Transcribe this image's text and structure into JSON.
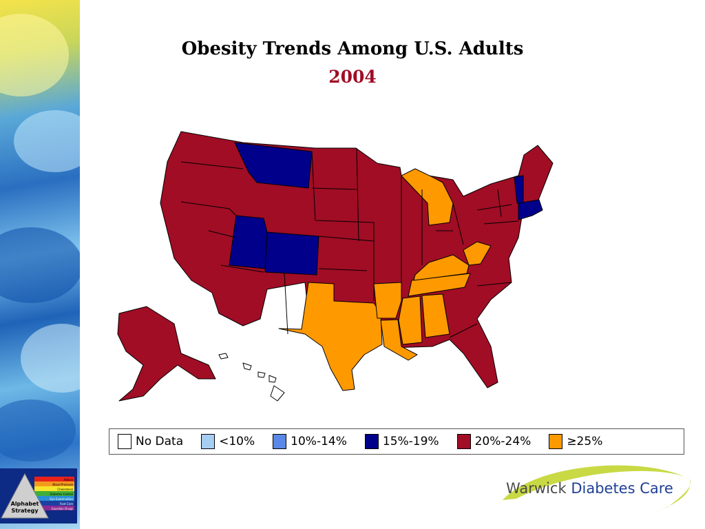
{
  "slide": {
    "title": "Obesity Trends Among U.S. Adults",
    "year": "2004",
    "year_color": "#a00d25"
  },
  "map": {
    "colors": {
      "no_data": "#ffffff",
      "lt10": "#a7cdf2",
      "p10_14": "#5a88e8",
      "p15_19": "#00008b",
      "p20_24": "#a00d25",
      "ge25": "#ff9900"
    },
    "states_15_19": [
      "Montana",
      "Utah",
      "Colorado",
      "Vermont",
      "Massachusetts",
      "Connecticut",
      "Rhode Island"
    ],
    "states_ge25": [
      "Michigan",
      "West Virginia",
      "Kentucky",
      "Tennessee",
      "Arkansas",
      "Texas",
      "Louisiana",
      "Mississippi",
      "Alabama"
    ],
    "states_no_data": [
      "Hawaii"
    ]
  },
  "legend": [
    {
      "label": "No Data",
      "color": "#ffffff"
    },
    {
      "label": "<10%",
      "color": "#a7cdf2"
    },
    {
      "label": "10%-14%",
      "color": "#5a88e8"
    },
    {
      "label": "15%-19%",
      "color": "#00008b"
    },
    {
      "label": "20%-24%",
      "color": "#a00d25"
    },
    {
      "label": "≥25%",
      "color": "#ff9900"
    }
  ],
  "badge": {
    "lines": [
      "Alphabet",
      "Strategy"
    ],
    "bands": [
      "Advice",
      "Blood Pressure",
      "Cholesterol",
      "Diabetes Control",
      "Eye Examination",
      "Foot Care",
      "Guardian Drugs"
    ]
  },
  "logo": {
    "word1": "Warwick",
    "word2": "Diabetes Care"
  }
}
